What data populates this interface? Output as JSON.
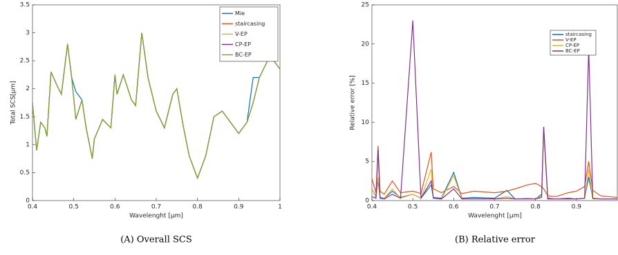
{
  "chart_data": [
    {
      "type": "line",
      "caption": "(A) Overall SCS",
      "xlabel": "Wavelenght [μm]",
      "ylabel": "Total SCS[μm]",
      "xlim": [
        0.4,
        1
      ],
      "ylim": [
        0,
        3.5
      ],
      "xticks": [
        0.4,
        0.5,
        0.6,
        0.7,
        0.8,
        0.9,
        1
      ],
      "yticks": [
        0,
        0.5,
        1,
        1.5,
        2,
        2.5,
        3,
        3.5
      ],
      "x": [
        0.4,
        0.41,
        0.42,
        0.43,
        0.435,
        0.445,
        0.46,
        0.47,
        0.485,
        0.495,
        0.505,
        0.52,
        0.53,
        0.545,
        0.55,
        0.57,
        0.59,
        0.6,
        0.605,
        0.62,
        0.64,
        0.65,
        0.665,
        0.68,
        0.7,
        0.72,
        0.74,
        0.75,
        0.765,
        0.78,
        0.8,
        0.82,
        0.84,
        0.86,
        0.88,
        0.9,
        0.92,
        0.935,
        0.95,
        0.97,
        0.985,
        1
      ],
      "series": [
        {
          "name": "Mie",
          "color": "#0072bd",
          "values": [
            1.75,
            0.9,
            1.4,
            1.3,
            1.15,
            2.3,
            2.05,
            1.9,
            2.8,
            2.2,
            1.95,
            1.8,
            1.3,
            0.75,
            1.1,
            1.45,
            1.3,
            2.25,
            1.9,
            2.25,
            1.8,
            1.7,
            3.0,
            2.2,
            1.6,
            1.3,
            1.9,
            2.0,
            1.35,
            0.8,
            0.4,
            0.8,
            1.5,
            1.6,
            1.4,
            1.2,
            1.4,
            2.2,
            2.2,
            2.5,
            2.5,
            2.35
          ]
        },
        {
          "name": "staircasing",
          "color": "#d95319",
          "values": [
            1.75,
            0.9,
            1.4,
            1.3,
            1.15,
            2.3,
            2.05,
            1.9,
            2.8,
            2.2,
            1.45,
            1.8,
            1.3,
            0.75,
            1.1,
            1.45,
            1.3,
            2.25,
            1.9,
            2.25,
            1.8,
            1.7,
            3.0,
            2.2,
            1.6,
            1.3,
            1.9,
            2.0,
            1.35,
            0.8,
            0.4,
            0.8,
            1.5,
            1.6,
            1.4,
            1.2,
            1.4,
            1.75,
            2.2,
            2.5,
            2.5,
            2.35
          ]
        },
        {
          "name": "V-EP",
          "color": "#edb120",
          "values": [
            1.75,
            0.9,
            1.4,
            1.3,
            1.15,
            2.3,
            2.05,
            1.9,
            2.8,
            2.2,
            1.45,
            1.8,
            1.3,
            0.75,
            1.1,
            1.45,
            1.3,
            2.25,
            1.9,
            2.25,
            1.8,
            1.7,
            3.0,
            2.2,
            1.6,
            1.3,
            1.9,
            2.0,
            1.35,
            0.8,
            0.4,
            0.8,
            1.5,
            1.6,
            1.4,
            1.2,
            1.4,
            1.75,
            2.2,
            2.5,
            2.5,
            2.35
          ]
        },
        {
          "name": "CP-EP",
          "color": "#7e2f8e",
          "values": [
            1.75,
            0.9,
            1.4,
            1.3,
            1.15,
            2.3,
            2.05,
            1.9,
            2.8,
            2.2,
            1.45,
            1.8,
            1.3,
            0.75,
            1.1,
            1.45,
            1.3,
            2.25,
            1.9,
            2.25,
            1.8,
            1.7,
            3.0,
            2.2,
            1.6,
            1.3,
            1.9,
            2.0,
            1.35,
            0.8,
            0.4,
            0.8,
            1.5,
            1.6,
            1.4,
            1.2,
            1.4,
            1.75,
            2.2,
            2.5,
            2.5,
            2.35
          ]
        },
        {
          "name": "BC-EP",
          "color": "#77ac30",
          "values": [
            1.75,
            0.9,
            1.4,
            1.3,
            1.15,
            2.3,
            2.05,
            1.9,
            2.8,
            2.2,
            1.45,
            1.8,
            1.3,
            0.75,
            1.1,
            1.45,
            1.3,
            2.25,
            1.9,
            2.25,
            1.8,
            1.7,
            3.0,
            2.2,
            1.6,
            1.3,
            1.9,
            2.0,
            1.35,
            0.8,
            0.4,
            0.8,
            1.5,
            1.6,
            1.4,
            1.2,
            1.4,
            1.75,
            2.2,
            2.5,
            2.5,
            2.35
          ]
        }
      ]
    },
    {
      "type": "line",
      "caption": "(B) Relative error",
      "xlabel": "Wavelenght [μm]",
      "ylabel": "Relative error [%]",
      "xlim": [
        0.4,
        1
      ],
      "ylim": [
        0,
        25
      ],
      "xticks": [
        0.4,
        0.5,
        0.6,
        0.7,
        0.8,
        0.9
      ],
      "yticks": [
        0,
        5,
        10,
        15,
        20,
        25
      ],
      "x": [
        0.4,
        0.41,
        0.415,
        0.42,
        0.43,
        0.45,
        0.47,
        0.5,
        0.52,
        0.545,
        0.55,
        0.57,
        0.6,
        0.62,
        0.65,
        0.7,
        0.73,
        0.75,
        0.78,
        0.8,
        0.815,
        0.82,
        0.83,
        0.85,
        0.88,
        0.9,
        0.92,
        0.93,
        0.94,
        0.96,
        1
      ],
      "series": [
        {
          "name": "staircasing",
          "color": "#0072bd",
          "values": [
            1.5,
            0.5,
            2.5,
            0.4,
            0.3,
            1.2,
            0.4,
            0.8,
            0.3,
            2.0,
            0.4,
            0.3,
            3.6,
            0.3,
            0.4,
            0.3,
            1.3,
            0.2,
            0.3,
            0.2,
            0.8,
            9.4,
            0.3,
            0.2,
            0.3,
            0.2,
            0.3,
            3.0,
            0.3,
            0.2,
            0.2
          ]
        },
        {
          "name": "V-EP",
          "color": "#d95319",
          "values": [
            2.8,
            1.0,
            7.0,
            1.2,
            0.8,
            2.5,
            1.0,
            1.2,
            0.9,
            6.2,
            1.5,
            1.0,
            1.8,
            0.9,
            1.2,
            1.0,
            1.2,
            1.5,
            2.0,
            2.2,
            1.8,
            1.5,
            0.6,
            0.5,
            1.0,
            1.2,
            1.8,
            5.0,
            1.3,
            0.6,
            0.4
          ]
        },
        {
          "name": "CP-EP",
          "color": "#edb120",
          "values": [
            1.5,
            0.4,
            3.0,
            0.3,
            0.3,
            1.5,
            0.3,
            0.8,
            0.3,
            4.0,
            0.3,
            0.2,
            3.2,
            0.2,
            0.3,
            0.2,
            0.5,
            0.2,
            0.3,
            0.2,
            0.6,
            9.0,
            0.2,
            0.2,
            0.2,
            0.2,
            0.3,
            4.0,
            0.2,
            0.2,
            0.2
          ]
        },
        {
          "name": "BC-EP",
          "color": "#7e2f8e",
          "values": [
            0.5,
            0.3,
            6.5,
            0.3,
            0.2,
            0.8,
            0.3,
            23,
            0.3,
            2.5,
            0.3,
            0.2,
            1.5,
            0.2,
            0.2,
            0.2,
            0.3,
            0.2,
            0.2,
            0.2,
            0.4,
            9.4,
            0.2,
            0.2,
            0.2,
            0.2,
            0.3,
            19.5,
            0.3,
            0.2,
            0.2
          ]
        }
      ]
    }
  ]
}
